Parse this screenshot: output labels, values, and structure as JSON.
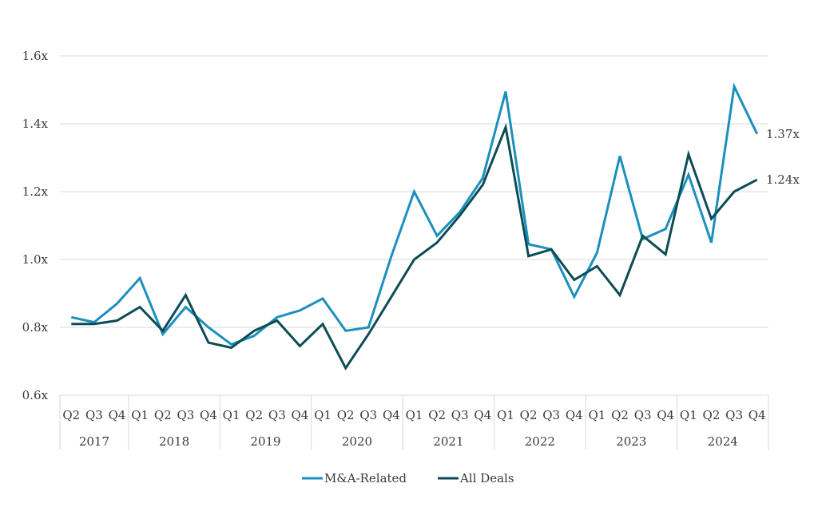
{
  "chart_data": {
    "type": "line",
    "title": "",
    "xlabel": "",
    "ylabel": "",
    "ylim": [
      0.6,
      1.6
    ],
    "y_ticks": [
      {
        "value": 0.6,
        "label": "0.6x"
      },
      {
        "value": 0.8,
        "label": "0.8x"
      },
      {
        "value": 1.0,
        "label": "1.0x"
      },
      {
        "value": 1.2,
        "label": "1.2x"
      },
      {
        "value": 1.4,
        "label": "1.4x"
      },
      {
        "value": 1.6,
        "label": "1.6x"
      }
    ],
    "grid": true,
    "legend_position": "bottom",
    "quarters": [
      "Q2",
      "Q3",
      "Q4",
      "Q1",
      "Q2",
      "Q3",
      "Q4",
      "Q1",
      "Q2",
      "Q3",
      "Q4",
      "Q1",
      "Q2",
      "Q3",
      "Q4",
      "Q1",
      "Q2",
      "Q3",
      "Q4",
      "Q1",
      "Q2",
      "Q3",
      "Q4",
      "Q1",
      "Q2",
      "Q3",
      "Q4",
      "Q1",
      "Q2",
      "Q3",
      "Q4"
    ],
    "years": [
      {
        "label": "2017",
        "quarter_count": 3
      },
      {
        "label": "2018",
        "quarter_count": 4
      },
      {
        "label": "2019",
        "quarter_count": 4
      },
      {
        "label": "2020",
        "quarter_count": 4
      },
      {
        "label": "2021",
        "quarter_count": 4
      },
      {
        "label": "2022",
        "quarter_count": 4
      },
      {
        "label": "2023",
        "quarter_count": 4
      },
      {
        "label": "2024",
        "quarter_count": 4
      }
    ],
    "series": [
      {
        "name": "M&A-Related",
        "color": "#1b8fbd",
        "values": [
          0.83,
          0.815,
          0.87,
          0.945,
          0.78,
          0.86,
          0.8,
          0.75,
          0.775,
          0.83,
          0.85,
          0.885,
          0.79,
          0.8,
          1.01,
          1.2,
          1.07,
          1.14,
          1.24,
          1.495,
          1.045,
          1.03,
          0.89,
          1.02,
          1.305,
          1.06,
          1.09,
          1.25,
          1.05,
          1.51,
          1.37
        ],
        "end_label": "1.37x"
      },
      {
        "name": "All Deals",
        "color": "#0d4c55",
        "values": [
          0.81,
          0.81,
          0.82,
          0.86,
          0.79,
          0.895,
          0.755,
          0.74,
          0.79,
          0.82,
          0.745,
          0.81,
          0.68,
          0.78,
          0.89,
          1.0,
          1.05,
          1.13,
          1.22,
          1.39,
          1.01,
          1.03,
          0.94,
          0.98,
          0.895,
          1.07,
          1.015,
          1.31,
          1.12,
          1.2,
          1.235
        ],
        "end_label": "1.24x"
      }
    ]
  }
}
